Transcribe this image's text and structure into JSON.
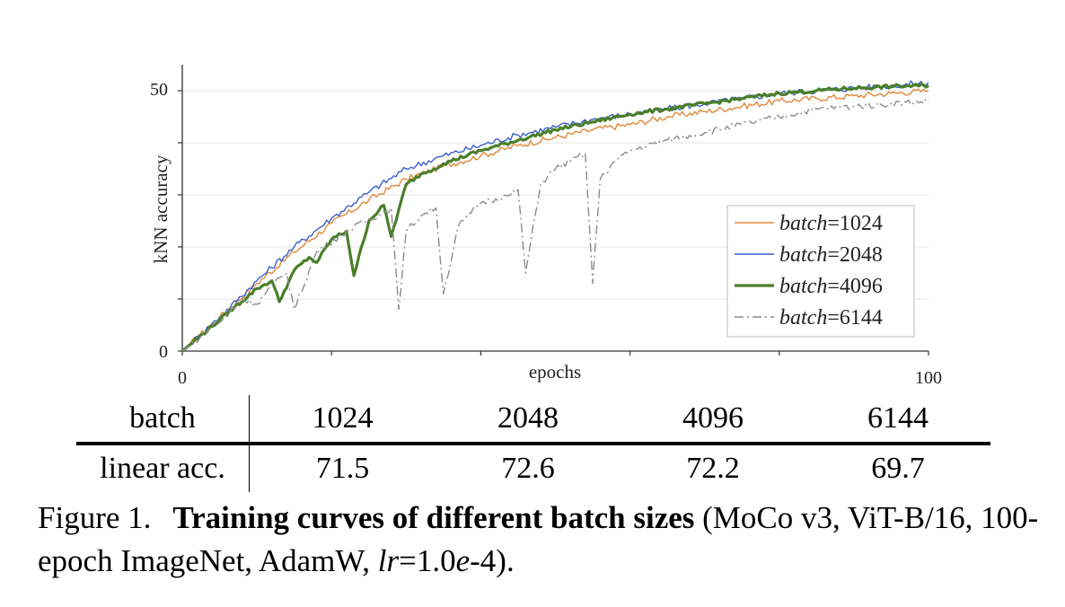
{
  "chart_data": {
    "type": "line",
    "xlabel": "epochs",
    "ylabel": "kNN accuracy",
    "xlim": [
      0,
      100
    ],
    "ylim": [
      0,
      55
    ],
    "x_tick_labels": [
      "0",
      "100"
    ],
    "y_tick_labels": [
      "0",
      "50"
    ],
    "legend_position": "bottom-right",
    "legend_prefix": "batch",
    "series": [
      {
        "name": "1024",
        "color": "#e0893a",
        "style": "solid",
        "x": [
          0,
          5,
          10,
          15,
          20,
          25,
          30,
          35,
          40,
          45,
          50,
          55,
          60,
          65,
          70,
          75,
          80,
          85,
          90,
          95,
          100
        ],
        "y": [
          0,
          6.5,
          13,
          19,
          24.5,
          29,
          33,
          35.5,
          37.5,
          39.5,
          41,
          42.5,
          43.5,
          45,
          46,
          47,
          48,
          48.5,
          49,
          49.5,
          50
        ]
      },
      {
        "name": "2048",
        "color": "#3a5fcd",
        "style": "solid",
        "x": [
          0,
          5,
          10,
          15,
          20,
          25,
          30,
          35,
          40,
          45,
          50,
          55,
          60,
          65,
          70,
          75,
          80,
          85,
          90,
          95,
          100
        ],
        "y": [
          0,
          6.5,
          13.5,
          20,
          25.5,
          30.5,
          35,
          37.5,
          39.5,
          41.5,
          43,
          44.5,
          45.5,
          46.5,
          47.5,
          48.5,
          49.5,
          50,
          50.5,
          51,
          51.5
        ]
      },
      {
        "name": "4096",
        "color": "#4a7f2a",
        "style": "thick",
        "x": [
          0,
          5,
          10,
          12,
          13,
          15,
          17,
          18,
          20,
          22,
          23,
          25,
          27,
          28,
          30,
          32,
          33,
          35,
          40,
          45,
          50,
          55,
          60,
          65,
          70,
          75,
          80,
          85,
          90,
          95,
          100
        ],
        "y": [
          0,
          6,
          12,
          13.5,
          9.5,
          15.5,
          18,
          17,
          21.5,
          23,
          14.5,
          25,
          28,
          22,
          32,
          34,
          34.5,
          36,
          38.5,
          40.5,
          42.5,
          44,
          45.5,
          46.5,
          47.5,
          48.5,
          49.5,
          50,
          50.5,
          50.8,
          51
        ]
      },
      {
        "name": "6144",
        "color": "#8c8c8c",
        "style": "dashdot",
        "x": [
          0,
          5,
          8,
          10,
          12,
          14,
          15,
          18,
          22,
          28,
          29,
          30,
          32,
          34,
          35,
          37,
          38,
          40,
          44,
          45,
          46,
          48,
          50,
          52,
          54,
          55,
          56,
          58,
          60,
          65,
          70,
          75,
          80,
          85,
          90,
          95,
          100
        ],
        "y": [
          0,
          5.5,
          10,
          9,
          12.5,
          15,
          8,
          19,
          23,
          27.5,
          8,
          23,
          26,
          27.5,
          11,
          24,
          25.5,
          28.5,
          30,
          31,
          15,
          32,
          35,
          36.5,
          38,
          13,
          33,
          36.5,
          38.5,
          40.5,
          42,
          43.5,
          45,
          46.5,
          47,
          47.5,
          48
        ]
      }
    ]
  },
  "table": {
    "header_label": "batch",
    "row_label": "linear acc.",
    "batches": [
      "1024",
      "2048",
      "4096",
      "6144"
    ],
    "linear_acc": [
      "71.5",
      "72.6",
      "72.2",
      "69.7"
    ]
  },
  "caption": {
    "lead": "Figure 1.",
    "title": "Training curves of different batch sizes",
    "rest_1": " (MoCo v3, ViT-B/16, 100-epoch ImageNet, AdamW, ",
    "lr_symbol": "lr",
    "eq": "=1.0",
    "e_symbol": "e",
    "rest_2": "-4)."
  }
}
